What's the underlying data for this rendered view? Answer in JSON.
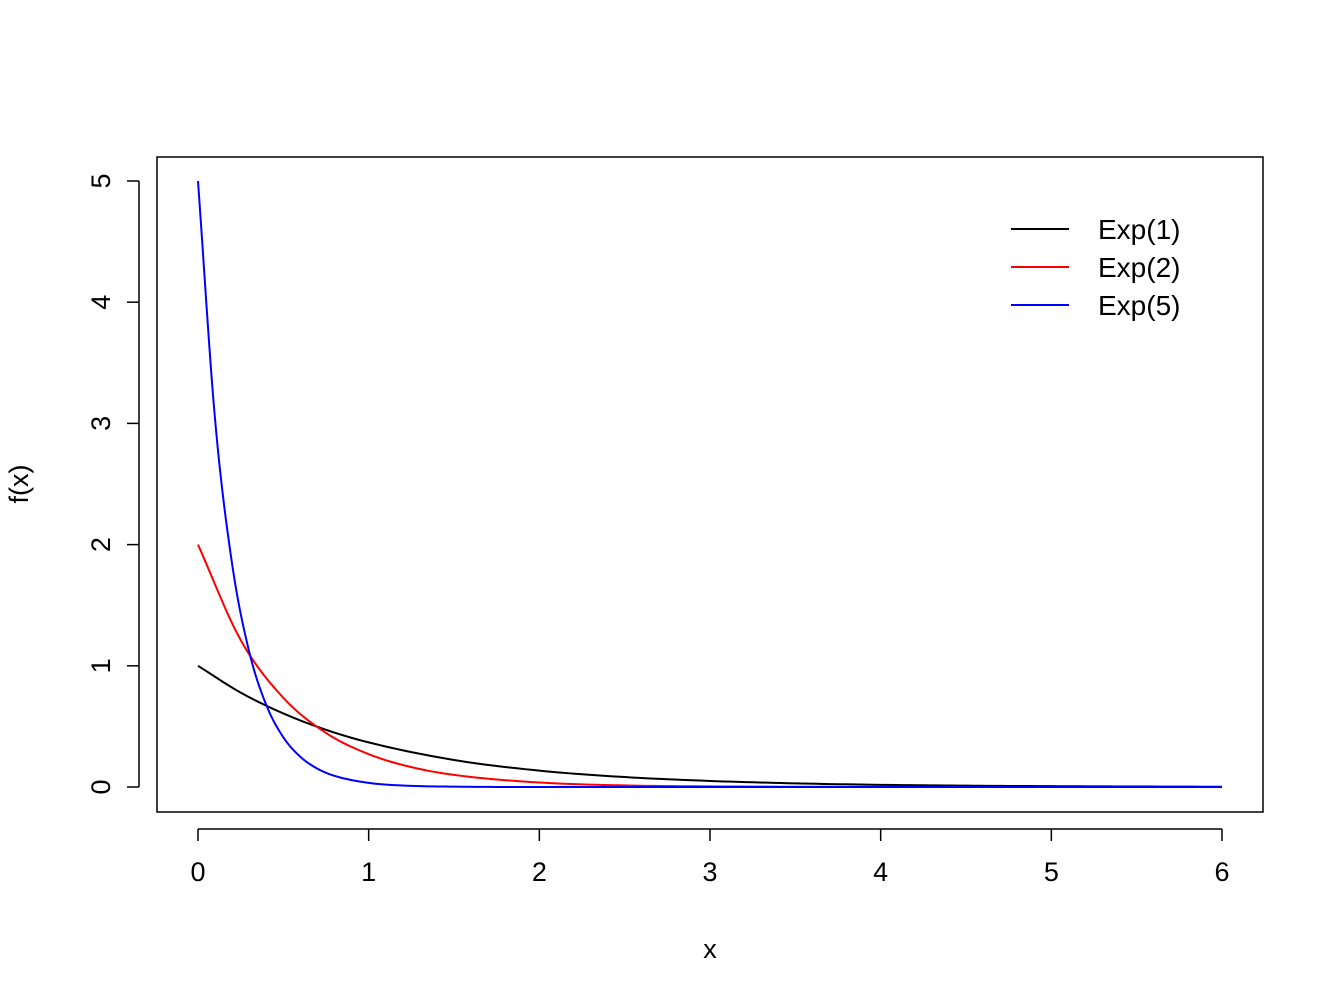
{
  "chart_data": {
    "type": "line",
    "xlabel": "x",
    "ylabel": "f(x)",
    "xlim": [
      0,
      6
    ],
    "ylim": [
      0,
      5
    ],
    "x_ticks": [
      "0",
      "1",
      "2",
      "3",
      "4",
      "5",
      "6"
    ],
    "y_ticks": [
      "0",
      "1",
      "2",
      "3",
      "4",
      "5"
    ],
    "grid": false,
    "legend_position": "top-right",
    "series": [
      {
        "name": "Exp(1)",
        "color": "#000000",
        "x": [
          0,
          0.25,
          0.5,
          0.75,
          1,
          1.5,
          2,
          2.5,
          3,
          3.5,
          4,
          4.5,
          5,
          5.5,
          6
        ],
        "y": [
          1,
          0.779,
          0.607,
          0.472,
          0.368,
          0.223,
          0.135,
          0.082,
          0.05,
          0.03,
          0.018,
          0.011,
          0.007,
          0.004,
          0.002
        ]
      },
      {
        "name": "Exp(2)",
        "color": "#ff0000",
        "x": [
          0,
          0.25,
          0.5,
          0.75,
          1,
          1.25,
          1.5,
          2,
          2.5,
          3,
          4,
          5,
          6
        ],
        "y": [
          2,
          1.213,
          0.736,
          0.446,
          0.271,
          0.164,
          0.1,
          0.037,
          0.013,
          0.005,
          0.001,
          0,
          0
        ]
      },
      {
        "name": "Exp(5)",
        "color": "#0000ff",
        "x": [
          0,
          0.1,
          0.2,
          0.3,
          0.4,
          0.5,
          0.6,
          0.7,
          0.8,
          1,
          1.2,
          1.5,
          2,
          3,
          4,
          5,
          6
        ],
        "y": [
          5,
          3.033,
          1.839,
          1.116,
          0.677,
          0.41,
          0.249,
          0.151,
          0.092,
          0.034,
          0.012,
          0.003,
          0,
          0,
          0,
          0,
          0
        ]
      }
    ]
  }
}
